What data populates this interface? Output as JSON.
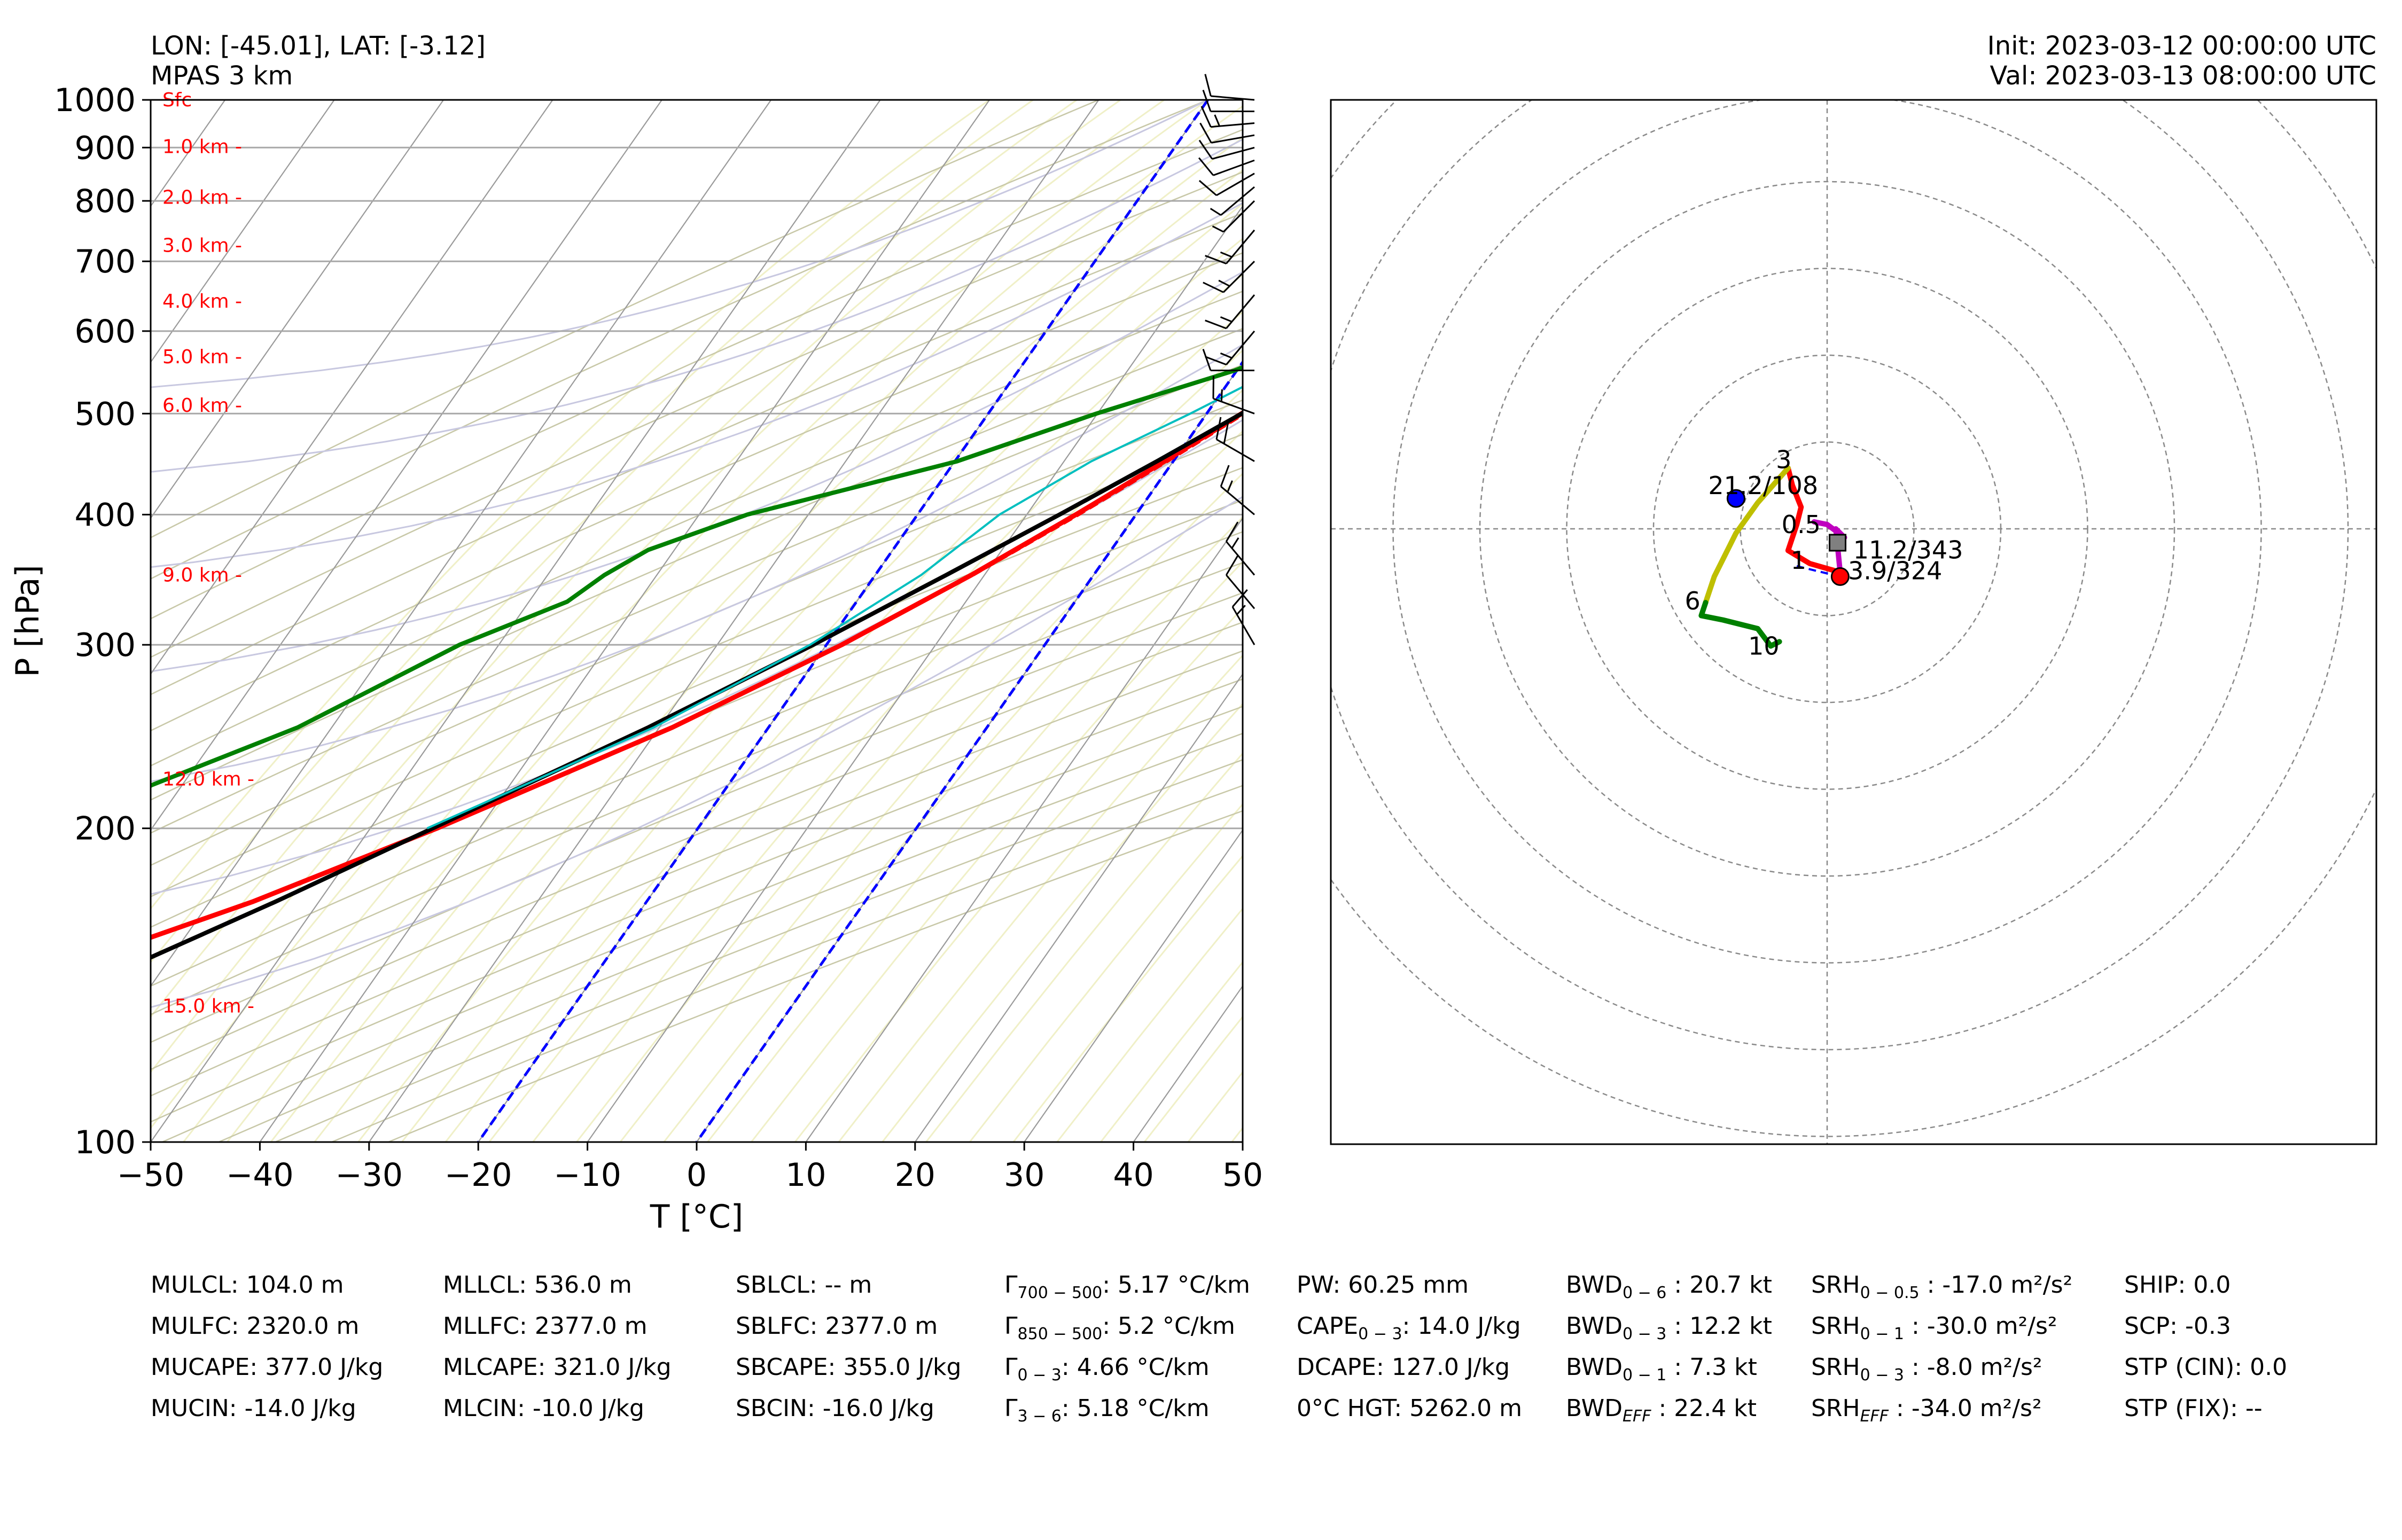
{
  "header": {
    "location": "LON: [-45.01], LAT: [-3.12]",
    "model": "MPAS 3 km",
    "init": "Init: 2023-03-12 00:00:00 UTC",
    "valid": "Val: 2023-03-13 08:00:00 UTC"
  },
  "chart_data": [
    {
      "type": "line",
      "title": "",
      "xlabel": "T [°C]",
      "ylabel": "P [hPa]",
      "xlim": [
        -50,
        50
      ],
      "ylim": [
        1000,
        100
      ],
      "y_scale": "log",
      "skew": true,
      "grid": true,
      "x_ticks": [
        "−50",
        "−40",
        "−30",
        "−20",
        "−10",
        "0",
        "10",
        "20",
        "30",
        "40",
        "50"
      ],
      "x_tick_values": [
        -50,
        -40,
        -30,
        -20,
        -10,
        0,
        10,
        20,
        30,
        40,
        50
      ],
      "y_ticks": [
        "100",
        "200",
        "300",
        "400",
        "500",
        "600",
        "700",
        "800",
        "900",
        "1000"
      ],
      "y_tick_values": [
        100,
        200,
        300,
        400,
        500,
        600,
        700,
        800,
        900,
        1000
      ],
      "height_labels": [
        {
          "text": "Sfc",
          "p": 1000
        },
        {
          "text": "1.0 km -",
          "p": 902
        },
        {
          "text": "2.0 km -",
          "p": 806
        },
        {
          "text": "3.0 km -",
          "p": 725
        },
        {
          "text": "4.0 km -",
          "p": 641
        },
        {
          "text": "5.0 km -",
          "p": 567
        },
        {
          "text": "6.0 km -",
          "p": 509
        },
        {
          "text": "9.0 km -",
          "p": 350
        },
        {
          "text": "12.0 km -",
          "p": 223
        },
        {
          "text": "15.0 km -",
          "p": 135
        }
      ],
      "colors": {
        "temperature": "#ff0000",
        "dewpoint": "#008000",
        "parcel": "#000000",
        "virtual_temp": "#ff0000",
        "wetbulb": "#00bfbf",
        "downdraft": "#bf00bf",
        "freezing_lines": "#0000ff"
      },
      "series": [
        {
          "key": "temperature",
          "points": [
            [
              23.5,
              1000
            ],
            [
              22.8,
              975
            ],
            [
              21.4,
              925
            ],
            [
              20.5,
              900
            ],
            [
              18.9,
              850
            ],
            [
              17.5,
              800
            ],
            [
              15.4,
              750
            ],
            [
              13.4,
              700
            ],
            [
              11.5,
              650
            ],
            [
              9.8,
              600
            ],
            [
              6.6,
              550
            ],
            [
              3.2,
              500
            ],
            [
              -0.8,
              450
            ],
            [
              -5.5,
              400
            ],
            [
              -11.2,
              350
            ],
            [
              -18.6,
              300
            ],
            [
              -28.8,
              250
            ],
            [
              -43.9,
              200
            ],
            [
              -56.1,
              170
            ],
            [
              -67.3,
              150
            ],
            [
              -76.6,
              130
            ],
            [
              -82.6,
              120
            ],
            [
              -84.4,
              110
            ],
            [
              -85.3,
              100
            ]
          ]
        },
        {
          "key": "dewpoint",
          "points": [
            [
              22.8,
              1000
            ],
            [
              22.4,
              975
            ],
            [
              20.6,
              925
            ],
            [
              19.8,
              900
            ],
            [
              18.5,
              850
            ],
            [
              13.0,
              825
            ],
            [
              12.8,
              800
            ],
            [
              12.0,
              750
            ],
            [
              10.0,
              700
            ],
            [
              8.5,
              650
            ],
            [
              7.0,
              600
            ],
            [
              -0.2,
              550
            ],
            [
              -10.1,
              500
            ],
            [
              -19.8,
              450
            ],
            [
              -35.6,
              400
            ],
            [
              -42.4,
              370
            ],
            [
              -44.8,
              350
            ],
            [
              -46.5,
              330
            ],
            [
              -53.6,
              300
            ],
            [
              -63.1,
              250
            ],
            [
              -72.8,
              220
            ],
            [
              -77.4,
              200
            ],
            [
              -80.5,
              180
            ],
            [
              -85.8,
              150
            ],
            [
              -88.7,
              130
            ],
            [
              -91.7,
              120
            ],
            [
              -93.6,
              110
            ],
            [
              -94.9,
              100
            ]
          ]
        },
        {
          "key": "virtual_temp",
          "points": [
            [
              27.5,
              1000
            ],
            [
              26.5,
              975
            ],
            [
              25.0,
              925
            ],
            [
              24.0,
              900
            ],
            [
              22.2,
              850
            ],
            [
              20.2,
              800
            ],
            [
              18.4,
              750
            ],
            [
              16.8,
              700
            ],
            [
              14.0,
              650
            ],
            [
              11.0,
              600
            ],
            [
              7.3,
              550
            ],
            [
              3.5,
              500
            ],
            [
              -0.5,
              450
            ],
            [
              -5.2,
              400
            ],
            [
              -11.0,
              350
            ]
          ]
        },
        {
          "key": "parcel",
          "points": [
            [
              29.5,
              1000
            ],
            [
              28.0,
              975
            ],
            [
              26.0,
              925
            ],
            [
              24.6,
              900
            ],
            [
              23.0,
              850
            ],
            [
              21.1,
              800
            ],
            [
              18.9,
              750
            ],
            [
              16.5,
              700
            ],
            [
              13.8,
              650
            ],
            [
              10.8,
              600
            ],
            [
              7.3,
              550
            ],
            [
              3.2,
              500
            ],
            [
              -1.5,
              450
            ],
            [
              -7.0,
              400
            ],
            [
              -13.5,
              350
            ],
            [
              -21.2,
              300
            ],
            [
              -31.0,
              250
            ],
            [
              -44.3,
              200
            ],
            [
              -54.0,
              170
            ],
            [
              -62.0,
              150
            ],
            [
              -71.5,
              130
            ],
            [
              -77.0,
              120
            ],
            [
              -83.0,
              110
            ],
            [
              -89.5,
              100
            ]
          ]
        },
        {
          "key": "wetbulb",
          "points": [
            [
              23.0,
              1000
            ],
            [
              22.5,
              975
            ],
            [
              20.9,
              925
            ],
            [
              20.0,
              900
            ],
            [
              18.7,
              850
            ],
            [
              15.0,
              800
            ],
            [
              13.9,
              750
            ],
            [
              12.1,
              700
            ],
            [
              10.0,
              650
            ],
            [
              8.0,
              600
            ],
            [
              3.5,
              550
            ],
            [
              -1.5,
              500
            ],
            [
              -7.5,
              450
            ],
            [
              -12.5,
              400
            ],
            [
              -15.8,
              350
            ],
            [
              -21.5,
              300
            ],
            [
              -30.5,
              250
            ],
            [
              -44.8,
              200
            ]
          ]
        },
        {
          "key": "downdraft",
          "points": [
            [
              22.0,
              1000
            ],
            [
              21.3,
              975
            ],
            [
              19.8,
              925
            ],
            [
              18.9,
              900
            ],
            [
              17.5,
              850
            ],
            [
              15.8,
              800
            ],
            [
              14.0,
              750
            ],
            [
              12.1,
              700
            ],
            [
              10.2,
              650
            ],
            [
              8.2,
              600
            ]
          ]
        }
      ],
      "freezing_lines": [
        0,
        -20
      ],
      "wind_barbs_kt": [
        {
          "p": 1000,
          "speed": 12,
          "dir": 95
        },
        {
          "p": 975,
          "speed": 14,
          "dir": 90
        },
        {
          "p": 950,
          "speed": 15,
          "dir": 85
        },
        {
          "p": 925,
          "speed": 14,
          "dir": 80
        },
        {
          "p": 900,
          "speed": 13,
          "dir": 75
        },
        {
          "p": 875,
          "speed": 12,
          "dir": 70
        },
        {
          "p": 850,
          "speed": 10,
          "dir": 60
        },
        {
          "p": 825,
          "speed": 9,
          "dir": 50
        },
        {
          "p": 800,
          "speed": 8,
          "dir": 45
        },
        {
          "p": 750,
          "speed": 15,
          "dir": 40
        },
        {
          "p": 700,
          "speed": 15,
          "dir": 45
        },
        {
          "p": 650,
          "speed": 15,
          "dir": 40
        },
        {
          "p": 600,
          "speed": 15,
          "dir": 40
        },
        {
          "p": 550,
          "speed": 10,
          "dir": 90
        },
        {
          "p": 500,
          "speed": 15,
          "dir": 110
        },
        {
          "p": 450,
          "speed": 20,
          "dir": 120
        },
        {
          "p": 400,
          "speed": 15,
          "dir": 130
        },
        {
          "p": 350,
          "speed": 15,
          "dir": 140
        },
        {
          "p": 325,
          "speed": 10,
          "dir": 140
        },
        {
          "p": 300,
          "speed": 15,
          "dir": 150
        }
      ]
    },
    {
      "type": "line",
      "title": "",
      "hodograph": true,
      "rings_kt": [
        10,
        20,
        30,
        40,
        50,
        60,
        70
      ],
      "segments": [
        {
          "name": "0-1 km",
          "color": "#ff0000",
          "points": [
            [
              1.5,
              -5.0
            ],
            [
              -2.0,
              -4.0
            ],
            [
              -4.5,
              -2.5
            ],
            [
              -3.5,
              0.5
            ],
            [
              -3.0,
              2.5
            ],
            [
              -4.0,
              5.0
            ],
            [
              -4.5,
              7.0
            ]
          ]
        },
        {
          "name": "0-0.5 km",
          "color": "#bf00bf",
          "points": [
            [
              1.5,
              -5.0
            ],
            [
              1.0,
              0.0
            ],
            [
              2.0,
              -1.0
            ],
            [
              0,
              0.5
            ],
            [
              -1.5,
              0.8
            ]
          ]
        },
        {
          "name": "1-3 km",
          "color": "#bfbf00",
          "points": [
            [
              -4.5,
              7.0
            ],
            [
              -8.0,
              3.0
            ],
            [
              -10.5,
              -0.5
            ],
            [
              -13.0,
              -5.5
            ],
            [
              -14.0,
              -8.5
            ]
          ]
        },
        {
          "name": "3-10 km",
          "color": "#008000",
          "points": [
            [
              -14.0,
              -8.5
            ],
            [
              -14.5,
              -10.0
            ],
            [
              -12.0,
              -10.5
            ],
            [
              -8.0,
              -11.5
            ],
            [
              -6.5,
              -13.5
            ],
            [
              -5.5,
              -13.0
            ]
          ]
        }
      ],
      "point_labels": [
        {
          "text": "3",
          "u": -5.0,
          "v": 7.0
        },
        {
          "text": "0.5",
          "u": -3.0,
          "v": -0.5
        },
        {
          "text": "1",
          "u": -3.3,
          "v": -4.6
        },
        {
          "text": "6",
          "u": -15.5,
          "v": -9.3
        },
        {
          "text": "10",
          "u": -7.3,
          "v": -14.5
        }
      ],
      "storm_motion_labels": [
        {
          "text": "21.2/108",
          "u": -13.7,
          "v": 4.0
        },
        {
          "text": "11.2/343",
          "u": 3.0,
          "v": -3.4
        },
        {
          "text": "3.9/324",
          "u": 2.4,
          "v": -5.8
        }
      ],
      "markers": [
        {
          "name": "left-mover",
          "u": -10.5,
          "v": 3.5,
          "color": "#0000ff"
        },
        {
          "name": "right-mover",
          "u": 1.5,
          "v": -5.5,
          "color": "#ff0000"
        },
        {
          "name": "mean-wind",
          "u": 1.2,
          "v": -1.6,
          "color": "#808080"
        }
      ]
    }
  ],
  "indices": [
    [
      "MULCL: 104.0 m",
      "MULFC: 2320.0 m",
      "MUCAPE: 377.0 J/kg",
      "MUCIN: -14.0 J/kg"
    ],
    [
      "MLLCL: 536.0 m",
      "MLLFC: 2377.0 m",
      "MLCAPE: 321.0 J/kg",
      "MLCIN: -10.0 J/kg"
    ],
    [
      "SBLCL: -- m",
      "SBLFC: 2377.0 m",
      "SBCAPE: 355.0 J/kg",
      "SBCIN: -16.0 J/kg"
    ],
    [
      {
        "base": "Γ",
        "sub": "700 − 500",
        "rest": ": 5.17 °C/km"
      },
      {
        "base": "Γ",
        "sub": "850 − 500",
        "rest": ": 5.2 °C/km"
      },
      {
        "base": "Γ",
        "sub": "0 − 3",
        "rest": ": 4.66 °C/km"
      },
      {
        "base": "Γ",
        "sub": "3 − 6",
        "rest": ": 5.18 °C/km"
      }
    ],
    [
      {
        "base": "PW: 60.25 mm"
      },
      {
        "base": "CAPE",
        "sub": "0 − 3",
        "rest": ": 14.0 J/kg"
      },
      {
        "base": "DCAPE: 127.0 J/kg"
      },
      {
        "base": "0°C HGT: 5262.0 m"
      }
    ],
    [
      {
        "base": "BWD",
        "sub": "0 − 6",
        "rest": " : 20.7 kt"
      },
      {
        "base": "BWD",
        "sub": "0 − 3",
        "rest": " : 12.2 kt"
      },
      {
        "base": "BWD",
        "sub": "0 − 1",
        "rest": " : 7.3 kt"
      },
      {
        "base": "BWD",
        "isub": "EFF",
        "rest": " : 22.4 kt"
      }
    ],
    [
      {
        "base": "SRH",
        "sub": "0 − 0.5",
        "rest": " : -17.0 m²/s²"
      },
      {
        "base": "SRH",
        "sub": "0 − 1",
        "rest": " : -30.0 m²/s²"
      },
      {
        "base": "SRH",
        "sub": "0 − 3",
        "rest": " : -8.0 m²/s²"
      },
      {
        "base": "SRH",
        "isub": "EFF",
        "rest": " : -34.0 m²/s²"
      }
    ],
    [
      "SHIP: 0.0",
      "SCP: -0.3",
      "STP (CIN): 0.0",
      "STP (FIX): --"
    ]
  ]
}
